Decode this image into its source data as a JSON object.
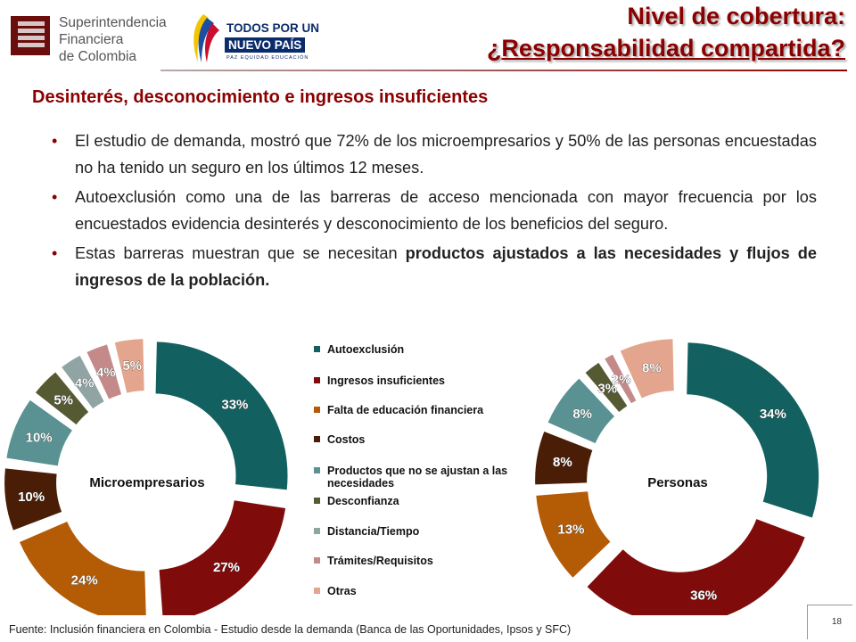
{
  "header": {
    "sfc_logo_lines": [
      "Superintendencia",
      "Financiera",
      "de Colombia"
    ],
    "gov_logo_lines": [
      "TODOS POR UN",
      "NUEVO PAÍS",
      "PAZ  EQUIDAD  EDUCACIÓN"
    ],
    "title_line1": "Nivel de cobertura:",
    "title_line2": "¿Responsabilidad compartida?",
    "title_color": "#8b0000"
  },
  "subtitle": "Desinterés, desconocimiento e ingresos insuficientes",
  "bullets": [
    {
      "text": "El estudio de demanda, mostró que 72% de los microempresarios y 50% de las personas encuestadas no ha tenido un seguro en los últimos 12 meses.",
      "bold": ""
    },
    {
      "text": "Autoexclusión como una de las barreras de acceso mencionada con mayor frecuencia por los encuestados evidencia desinterés y desconocimiento de los beneficios del seguro.",
      "bold": ""
    },
    {
      "text": "Estas barreras muestran que se necesitan ",
      "bold": "productos ajustados a las necesidades y flujos de ingresos de la población."
    }
  ],
  "chart_data": [
    {
      "type": "pie",
      "center_label": "Microempresarios",
      "categories": [
        "Autoexclusión",
        "Ingresos insuficientes",
        "Falta de educación financiera",
        "Costos",
        "Productos que no se ajustan a las necesidades",
        "Desconfianza",
        "Distancia/Tiempo",
        "Trámites/Requisitos",
        "Otras"
      ],
      "values": [
        33,
        27,
        24,
        10,
        10,
        5,
        4,
        4,
        5
      ],
      "labels": [
        "33%",
        "27%",
        "24%",
        "10%",
        "10%",
        "5%",
        "4%",
        "4%",
        "5%"
      ]
    },
    {
      "type": "pie",
      "center_label": "Personas",
      "categories": [
        "Autoexclusión",
        "Ingresos insuficientes",
        "Falta de educación financiera",
        "Costos",
        "Productos que no se ajustan a las necesidades",
        "Desconfianza",
        "Distancia/Tiempo",
        "Trámites/Requisitos",
        "Otras"
      ],
      "values": [
        34,
        36,
        13,
        8,
        8,
        3,
        0,
        2,
        8
      ],
      "labels": [
        "34%",
        "36%",
        "13%",
        "8%",
        "8%",
        "3%",
        "",
        "2%",
        "8%"
      ]
    }
  ],
  "legend": [
    {
      "label": "Autoexclusión",
      "color": "#12605f"
    },
    {
      "label": "Ingresos insuficientes",
      "color": "#7f0b0b"
    },
    {
      "label": "Falta de educación financiera",
      "color": "#b45b06"
    },
    {
      "label": "Costos",
      "color": "#4a1e06"
    },
    {
      "label": "Productos que no se ajustan a las necesidades",
      "color": "#5a9293"
    },
    {
      "label": "Desconfianza",
      "color": "#565a32"
    },
    {
      "label": "Distancia/Tiempo",
      "color": "#8fa4a3"
    },
    {
      "label": "Trámites/Requisitos",
      "color": "#c48a8a"
    },
    {
      "label": "Otras",
      "color": "#e3a58d"
    }
  ],
  "footer": "Fuente: Inclusión financiera en Colombia - Estudio desde la demanda (Banca de las Oportunidades, Ipsos y SFC)",
  "page_number": "18"
}
